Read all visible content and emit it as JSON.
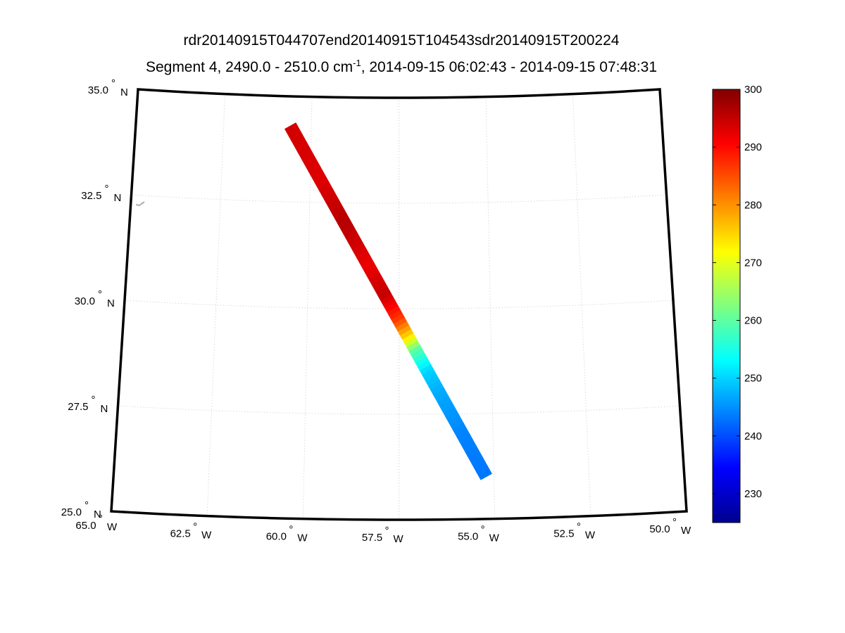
{
  "chart_data": {
    "type": "heatmap",
    "title": "rdr20140915T044707end20140915T104543sdr20140915T200224",
    "subtitle_pre": "Segment 4, 2490.0 - 2510.0 cm",
    "subtitle_sup": "-1",
    "subtitle_post": ", 2014-09-15 06:02:43 - 2014-09-15 07:48:31",
    "projection": "map",
    "lon_range": [
      -65.0,
      -50.0
    ],
    "lat_range": [
      25.0,
      35.0
    ],
    "grid": true,
    "lat_ticks": [
      {
        "value": 35.0,
        "deg": "35.0",
        "hemi": "N"
      },
      {
        "value": 32.5,
        "deg": "32.5",
        "hemi": "N"
      },
      {
        "value": 30.0,
        "deg": "30.0",
        "hemi": "N"
      },
      {
        "value": 27.5,
        "deg": "27.5",
        "hemi": "N"
      },
      {
        "value": 25.0,
        "deg": "25.0",
        "hemi": "N"
      }
    ],
    "lon_ticks": [
      {
        "value": -65.0,
        "deg": "65.0",
        "hemi": "W"
      },
      {
        "value": -62.5,
        "deg": "62.5",
        "hemi": "W"
      },
      {
        "value": -60.0,
        "deg": "60.0",
        "hemi": "W"
      },
      {
        "value": -57.5,
        "deg": "57.5",
        "hemi": "W"
      },
      {
        "value": -55.0,
        "deg": "55.0",
        "hemi": "W"
      },
      {
        "value": -52.5,
        "deg": "52.5",
        "hemi": "W"
      },
      {
        "value": -50.0,
        "deg": "50.0",
        "hemi": "W"
      }
    ],
    "colorbar": {
      "range": [
        225,
        300
      ],
      "ticks": [
        230,
        240,
        250,
        260,
        270,
        280,
        290,
        300
      ],
      "colormap": "jet"
    },
    "swath": {
      "start": {
        "lon": -60.6,
        "lat": 34.3
      },
      "end": {
        "lon": -55.2,
        "lat": 26.0
      },
      "profile": [
        {
          "lat": 34.3,
          "value": 294
        },
        {
          "lat": 33.0,
          "value": 293
        },
        {
          "lat": 32.0,
          "value": 296
        },
        {
          "lat": 31.0,
          "value": 292
        },
        {
          "lat": 30.3,
          "value": 295
        },
        {
          "lat": 29.7,
          "value": 286
        },
        {
          "lat": 29.3,
          "value": 274
        },
        {
          "lat": 29.0,
          "value": 260
        },
        {
          "lat": 28.5,
          "value": 250
        },
        {
          "lat": 28.0,
          "value": 247
        },
        {
          "lat": 27.0,
          "value": 244
        },
        {
          "lat": 26.0,
          "value": 243
        }
      ]
    }
  }
}
